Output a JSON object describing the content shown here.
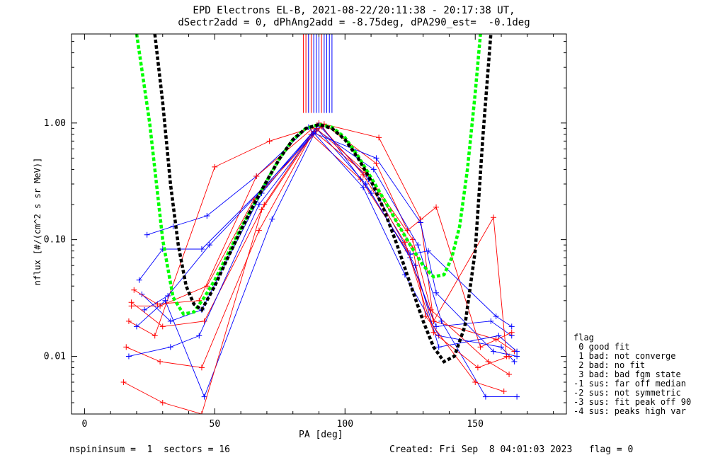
{
  "title_line1": "EPD Electrons EL-B, 2021-08-22/20:11:38 - 20:17:38 UT,",
  "title_line2": "dSectr2add = 0, dPhAng2add = -8.75deg, dPA290_est=  -0.1deg",
  "footer_left": "nspininsum =  1  sectors = 16",
  "footer_right": "Created: Fri Sep  8 04:01:03 2023   flag = 0",
  "legend": {
    "heading": "flag",
    "items": [
      " 0 good fit",
      " 1 bad: not converge",
      " 2 bad: no fit",
      " 3 bad: bad fgm state",
      "-1 sus: far off median",
      "-2 sus: not symmetric",
      "-3 sus: fit peak off 90",
      "-4 sus: peaks high var"
    ]
  },
  "colors": {
    "red": "#ff0000",
    "blue": "#0000ff",
    "green": "#00ff00",
    "black": "#000000"
  },
  "chart_data": {
    "type": "line",
    "xlabel": "PA [deg]",
    "ylabel": "nflux [#/(cm^2 s sr MeV)]",
    "xlim": [
      -5,
      185
    ],
    "ylim": [
      0.0032,
      5.8
    ],
    "ylog": true,
    "x_ticks": [
      0,
      50,
      100,
      150
    ],
    "y_ticks": [
      0.01,
      0.1,
      1.0
    ],
    "y_tick_labels": [
      "0.01",
      "0.10",
      "1.00"
    ],
    "sector_pa": [
      15,
      25,
      35,
      45,
      55,
      65,
      75,
      85,
      95,
      105,
      115,
      125,
      135,
      145,
      155,
      165
    ],
    "series": [
      {
        "color": "red",
        "x": [
          18,
          30,
          46,
          69,
          87,
          106,
          124,
          134,
          158,
          165
        ],
        "y": [
          0.029,
          0.018,
          0.02,
          0.2,
          0.8,
          0.33,
          0.08,
          0.02,
          0.014,
          0.011
        ]
      },
      {
        "color": "blue",
        "x": [
          22,
          33,
          45,
          68,
          89,
          108,
          125,
          135,
          156,
          164
        ],
        "y": [
          0.034,
          0.02,
          0.025,
          0.25,
          0.9,
          0.3,
          0.07,
          0.018,
          0.02,
          0.015
        ]
      },
      {
        "color": "red",
        "x": [
          16,
          29,
          45,
          67,
          88,
          109,
          126,
          133,
          155,
          163
        ],
        "y": [
          0.012,
          0.009,
          0.008,
          0.12,
          0.85,
          0.35,
          0.1,
          0.025,
          0.009,
          0.007
        ]
      },
      {
        "color": "blue",
        "x": [
          21,
          30,
          45,
          70,
          91,
          110,
          127,
          136,
          159,
          166
        ],
        "y": [
          0.045,
          0.083,
          0.083,
          0.3,
          0.95,
          0.25,
          0.06,
          0.012,
          0.015,
          0.011
        ]
      },
      {
        "color": "red",
        "x": [
          17,
          27,
          50,
          71,
          92,
          112,
          124,
          135,
          152,
          164
        ],
        "y": [
          0.02,
          0.015,
          0.42,
          0.7,
          0.98,
          0.45,
          0.12,
          0.19,
          0.012,
          0.016
        ]
      },
      {
        "color": "blue",
        "x": [
          24,
          34,
          47,
          66,
          86,
          107,
          123,
          136,
          160,
          165
        ],
        "y": [
          0.11,
          0.13,
          0.16,
          0.35,
          0.92,
          0.28,
          0.05,
          0.015,
          0.012,
          0.009
        ]
      },
      {
        "color": "red",
        "x": [
          19,
          28,
          44,
          66,
          90,
          113,
          129,
          134,
          157,
          162
        ],
        "y": [
          0.037,
          0.028,
          0.03,
          0.35,
          1.0,
          0.75,
          0.15,
          0.02,
          0.155,
          0.01
        ]
      },
      {
        "color": "blue",
        "x": [
          20,
          31,
          46,
          72,
          89,
          111,
          128,
          137,
          154,
          166
        ],
        "y": [
          0.018,
          0.03,
          0.0045,
          0.15,
          0.88,
          0.4,
          0.09,
          0.02,
          0.0045,
          0.0045
        ]
      },
      {
        "color": "red",
        "x": [
          15,
          30,
          45,
          68,
          89,
          108,
          126,
          131,
          150,
          161
        ],
        "y": [
          0.006,
          0.004,
          0.0032,
          0.18,
          0.9,
          0.38,
          0.085,
          0.022,
          0.006,
          0.005
        ]
      },
      {
        "color": "blue",
        "x": [
          23,
          32,
          48,
          69,
          90,
          109,
          125,
          132,
          158,
          164
        ],
        "y": [
          0.025,
          0.033,
          0.09,
          0.28,
          0.96,
          0.33,
          0.075,
          0.08,
          0.022,
          0.018
        ]
      },
      {
        "color": "red",
        "x": [
          18,
          29,
          47,
          65,
          91,
          107,
          123,
          134,
          151,
          163
        ],
        "y": [
          0.027,
          0.027,
          0.04,
          0.22,
          0.93,
          0.36,
          0.095,
          0.016,
          0.008,
          0.01
        ]
      },
      {
        "color": "blue",
        "x": [
          17,
          33,
          44,
          67,
          88,
          112,
          129,
          135,
          157,
          166
        ],
        "y": [
          0.01,
          0.012,
          0.015,
          0.2,
          0.82,
          0.5,
          0.14,
          0.035,
          0.011,
          0.01
        ]
      }
    ],
    "model_curves": [
      {
        "color": "green",
        "style": "dashed",
        "x": [
          20,
          25,
          30,
          34,
          38,
          42,
          46,
          50,
          55,
          60,
          65,
          70,
          75,
          80,
          85,
          90,
          95,
          100,
          105,
          110,
          115,
          120,
          125,
          130,
          134,
          138,
          141,
          144,
          147,
          150,
          152
        ],
        "y": [
          5.8,
          1.0,
          0.1,
          0.032,
          0.023,
          0.024,
          0.032,
          0.045,
          0.075,
          0.125,
          0.2,
          0.32,
          0.5,
          0.72,
          0.9,
          0.97,
          0.92,
          0.75,
          0.52,
          0.34,
          0.22,
          0.14,
          0.09,
          0.06,
          0.048,
          0.05,
          0.07,
          0.13,
          0.4,
          1.8,
          5.8
        ]
      },
      {
        "color": "black",
        "style": "dashed",
        "x": [
          27,
          30,
          33,
          36,
          39,
          42,
          45,
          50,
          55,
          60,
          65,
          70,
          75,
          80,
          85,
          90,
          95,
          100,
          105,
          110,
          115,
          120,
          125,
          130,
          134,
          138,
          142,
          146,
          150,
          153,
          156
        ],
        "y": [
          5.8,
          1.5,
          0.3,
          0.09,
          0.04,
          0.028,
          0.025,
          0.04,
          0.07,
          0.12,
          0.2,
          0.32,
          0.5,
          0.72,
          0.9,
          0.97,
          0.9,
          0.72,
          0.5,
          0.32,
          0.18,
          0.09,
          0.042,
          0.02,
          0.012,
          0.009,
          0.01,
          0.018,
          0.08,
          0.8,
          5.8
        ]
      }
    ],
    "vertical_lines": {
      "x": [
        84,
        85,
        86,
        87,
        88,
        89,
        90,
        91,
        92,
        93,
        94,
        95
      ],
      "colors": [
        "red",
        "red",
        "blue",
        "red",
        "blue",
        "blue",
        "blue",
        "red",
        "blue",
        "blue",
        "blue",
        "blue"
      ],
      "y_from": 1.22
    }
  }
}
